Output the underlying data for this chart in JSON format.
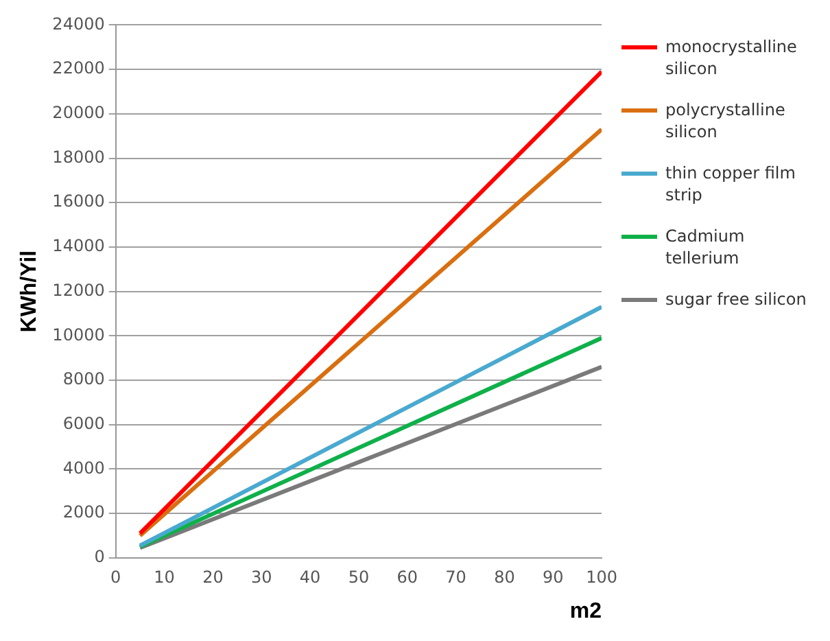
{
  "chart_data": {
    "type": "line",
    "xlabel": "m2",
    "ylabel": "KWh/Yil",
    "x": [
      5,
      100
    ],
    "series": [
      {
        "name": "monocrystalline silicon",
        "color": "#ff0000",
        "values": [
          1100,
          21900
        ]
      },
      {
        "name": "polycrystalline silicon",
        "color": "#d96f10",
        "values": [
          1000,
          19300
        ]
      },
      {
        "name": "thin copper film strip",
        "color": "#4aa9cf",
        "values": [
          550,
          11300
        ]
      },
      {
        "name": "Cadmium tellerium",
        "color": "#0fb04a",
        "values": [
          500,
          9900
        ]
      },
      {
        "name": "sugar free silicon",
        "color": "#7a7a7a",
        "values": [
          450,
          8600
        ]
      }
    ],
    "xlim": [
      0,
      100
    ],
    "xticks": [
      0,
      10,
      20,
      30,
      40,
      50,
      60,
      70,
      80,
      90,
      100
    ],
    "ylim": [
      0,
      24000
    ],
    "yticks": [
      0,
      2000,
      4000,
      6000,
      8000,
      10000,
      12000,
      14000,
      16000,
      18000,
      20000,
      22000,
      24000
    ],
    "grid": "y",
    "legend": "right",
    "marker": "none"
  }
}
